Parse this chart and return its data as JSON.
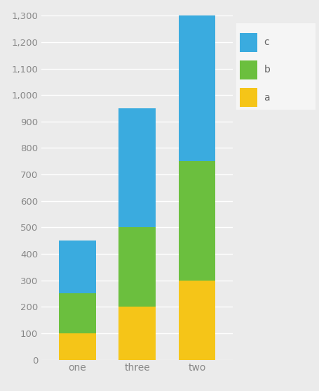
{
  "categories": [
    "one",
    "three",
    "two"
  ],
  "series": {
    "a": [
      100,
      200,
      300
    ],
    "b": [
      150,
      300,
      450
    ],
    "c": [
      200,
      450,
      550
    ]
  },
  "colors": {
    "a": "#F5C518",
    "b": "#6BBF3E",
    "c": "#3AABDF"
  },
  "ylim": [
    0,
    1300
  ],
  "yticks": [
    0,
    100,
    200,
    300,
    400,
    500,
    600,
    700,
    800,
    900,
    1000,
    1100,
    1200,
    1300
  ],
  "ytick_labels": [
    "0",
    "100",
    "200",
    "300",
    "400",
    "500",
    "600",
    "700",
    "800",
    "900",
    "1,000",
    "1,100",
    "1,200",
    "1,300"
  ],
  "legend_order": [
    "c",
    "b",
    "a"
  ],
  "background_color": "#ebebeb",
  "plot_bg_color": "#ebebeb",
  "bar_width": 0.62,
  "legend_bg": "#f5f5f5"
}
